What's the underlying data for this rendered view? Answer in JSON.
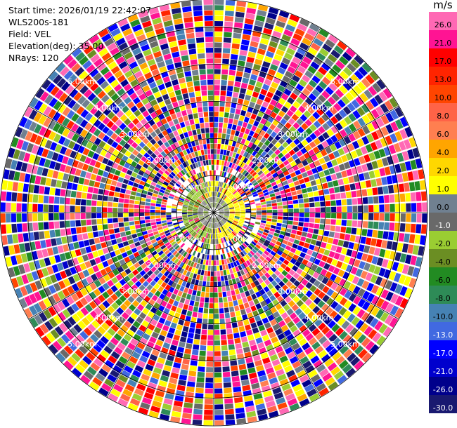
{
  "header": {
    "start_time": "Start time: 2026/01/19 22:42:07",
    "instrument": "WLS200s-181",
    "field": "Field: VEL",
    "elevation": "Elevation(deg): 35.00",
    "nrays": "NRays: 120"
  },
  "chart_data": {
    "type": "heatmap",
    "projection": "polar (PPI scan)",
    "field": "VEL",
    "elevation_deg": 35.0,
    "n_rays": 120,
    "max_range_km": 5.75,
    "range_rings_km": [
      1.0,
      2.0,
      3.0,
      4.0,
      5.0
    ],
    "ring_labels": [
      "1.00km",
      "2.00km",
      "3.00km",
      "4.00km",
      "5.00km"
    ],
    "ring_label_bearings_deg": [
      45,
      135,
      225,
      315
    ],
    "azimuth_lines_deg": [
      0,
      30,
      60,
      90,
      120,
      150
    ],
    "colorbar": {
      "unit": "m/s",
      "tick_labels": [
        "26.0",
        "21.0",
        "17.0",
        "13.0",
        "10.0",
        "8.0",
        "6.0",
        "4.0",
        "2.0",
        "1.0",
        "0.0",
        "-1.0",
        "-2.0",
        "-4.0",
        "-6.0",
        "-8.0",
        "-10.0",
        "-13.0",
        "-17.0",
        "-21.0",
        "-26.0",
        "-30.0"
      ],
      "colors": [
        "#ff69b4",
        "#ff1493",
        "#ff0000",
        "#ff2400",
        "#ff4500",
        "#ff6347",
        "#ff7f50",
        "#ffa500",
        "#ffd700",
        "#ffff00",
        "#708090",
        "#696969",
        "#9acd32",
        "#6b8e23",
        "#228b22",
        "#2e8b57",
        "#4682b4",
        "#4169e1",
        "#0000ff",
        "#0000cd",
        "#00008b",
        "#191970"
      ]
    },
    "pattern_notes": "Inner region (< ~0.8 km) shows near-zero (gray/olive) values, a yellow band (~1 m/s) on the eastern side near 0.5-0.8 km; beyond ~1 km values are noise spanning the full color range."
  }
}
